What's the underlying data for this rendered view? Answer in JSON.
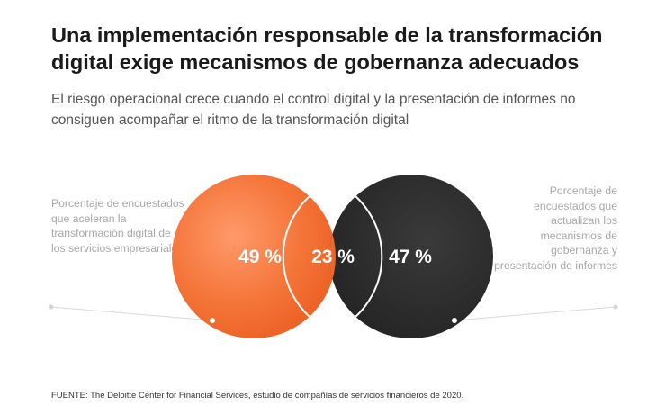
{
  "title": "Una implementación responsable de la transformación digital exige mecanismos de gobernanza adecuados",
  "subtitle": "El riesgo operacional crece cuando el control digital y la presentación de informes no consiguen acompañar el ritmo de la transformación digital",
  "source": "FUENTE: The Deloitte Center for Financial Services, estudio de compañías de servicios financieros de 2020.",
  "colors": {
    "left": "#f36c2f",
    "right": "#2b2b2b",
    "overlap_dark": "#1f1f1f"
  },
  "chart_data": {
    "type": "venn",
    "title": "Una implementación responsable de la transformación digital exige mecanismos de gobernanza adecuados",
    "subtitle": "El riesgo operacional crece cuando el control digital y la presentación de informes no consiguen acompañar el ritmo de la transformación digital",
    "sets": [
      {
        "label": "Porcentaje de encuestados que aceleran la transformación digital de los servicios empresariales",
        "value": 49,
        "value_label": "49 %",
        "color": "#f36c2f"
      },
      {
        "label": "Porcentaje de encuestados que actualizan los mecanismos de gobernanza y presentación de informes",
        "value": 47,
        "value_label": "47 %",
        "color": "#2b2b2b"
      }
    ],
    "intersection": {
      "value": 23,
      "value_label": "23 %"
    }
  }
}
